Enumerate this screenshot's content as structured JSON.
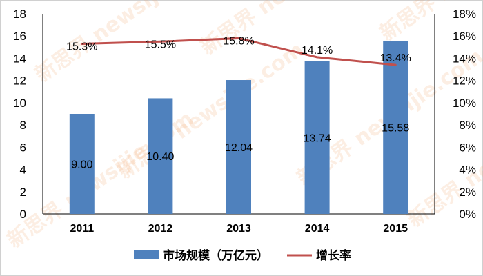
{
  "chart_data": {
    "type": "bar",
    "categories": [
      "2011",
      "2012",
      "2013",
      "2014",
      "2015"
    ],
    "series": [
      {
        "name": "市场规模（万亿元）",
        "type": "bar",
        "axis": "left",
        "color": "#4f81bd",
        "values": [
          9.0,
          10.4,
          12.04,
          13.74,
          15.58
        ],
        "labels": [
          "9.00",
          "10.40",
          "12.04",
          "13.74",
          "15.58"
        ]
      },
      {
        "name": "增长率",
        "type": "line",
        "axis": "right",
        "color": "#c0504d",
        "values": [
          15.3,
          15.5,
          15.8,
          14.1,
          13.4
        ],
        "labels": [
          "15.3%",
          "15.5%",
          "15.8%",
          "14.1%",
          "13.4%"
        ]
      }
    ],
    "y_left": {
      "range": [
        0,
        18
      ],
      "ticks": [
        "0",
        "2",
        "4",
        "6",
        "8",
        "10",
        "12",
        "14",
        "16",
        "18"
      ]
    },
    "y_right": {
      "range": [
        0,
        18
      ],
      "unit": "%",
      "ticks": [
        "0%",
        "2%",
        "4%",
        "6%",
        "8%",
        "10%",
        "12%",
        "14%",
        "16%",
        "18%"
      ]
    },
    "grid": false,
    "legend_placement": "bottom"
  },
  "watermark": "新思界 newsijie.com"
}
